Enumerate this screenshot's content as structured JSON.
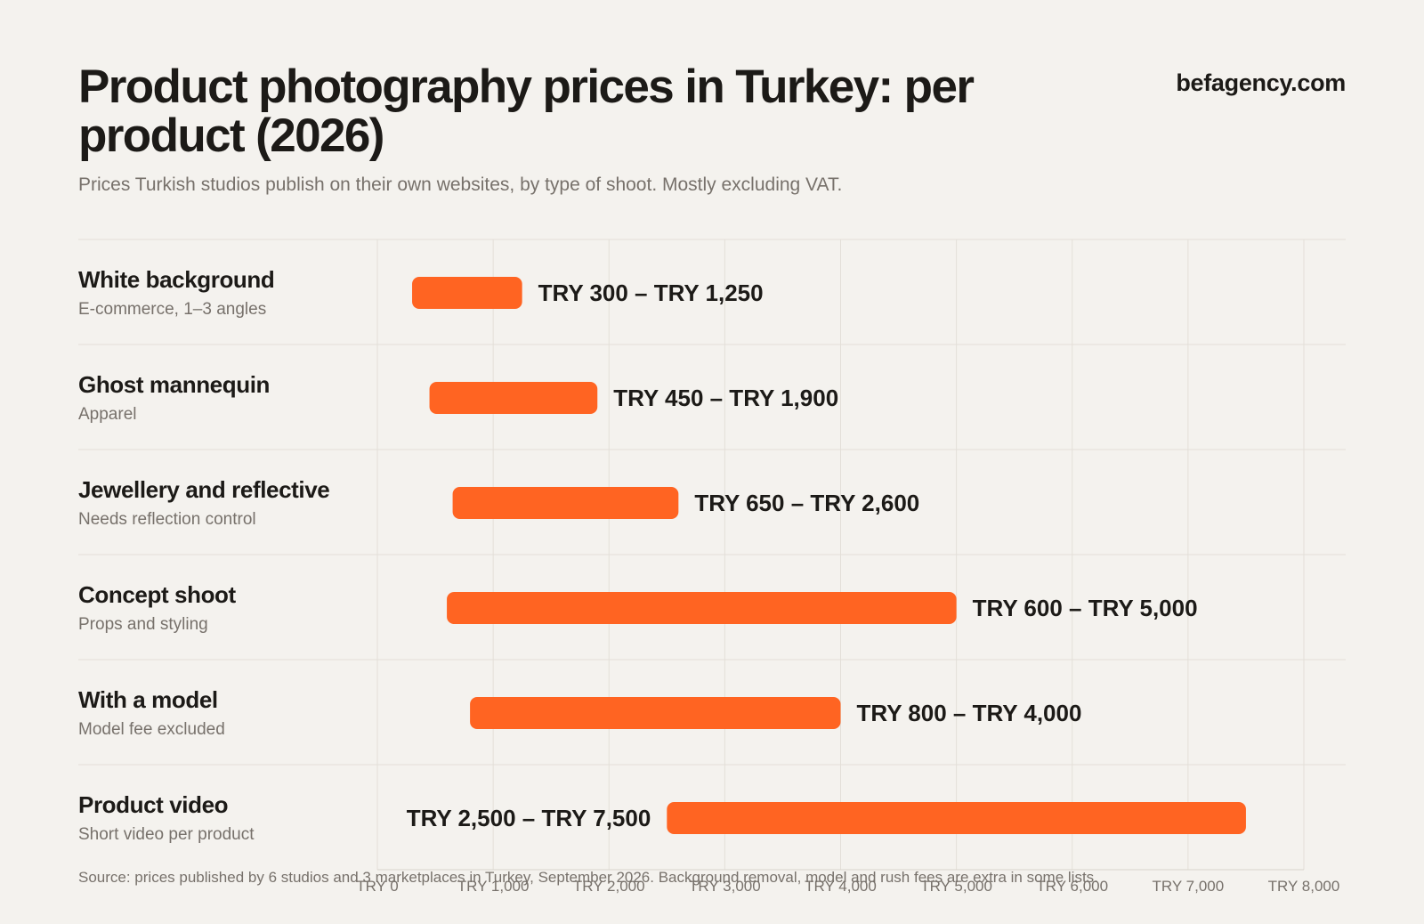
{
  "header": {
    "title": "Product photography prices in Turkey: per product (2026)",
    "brand": "befagency.com",
    "subtitle": "Prices Turkish studios publish on their own websites, by type of shoot. Mostly excluding VAT."
  },
  "footer": {
    "source": "Source: prices published by 6 studios and 3 marketplaces in Turkey, September 2026. Background removal, model and rush fees are extra in some lists."
  },
  "colors": {
    "bar": "#ff6422",
    "text": "#1c1a17",
    "muted": "#77716b",
    "grid": "#e3dfd8",
    "background": "#f4f2ee"
  },
  "chart_data": {
    "type": "bar",
    "orientation": "horizontal-range",
    "xlim": [
      0,
      8000
    ],
    "x_ticks": [
      0,
      1000,
      2000,
      3000,
      4000,
      5000,
      6000,
      7000,
      8000
    ],
    "tick_labels": [
      "TRY 0",
      "TRY 1,000",
      "TRY 2,000",
      "TRY 3,000",
      "TRY 4,000",
      "TRY 5,000",
      "TRY 6,000",
      "TRY 7,000",
      "TRY 8,000"
    ],
    "grid": true,
    "categories": [
      {
        "name": "White background",
        "note": "E-commerce, 1–3 angles",
        "low": 300,
        "high": 1250,
        "label": "TRY 300 – TRY 1,250",
        "label_side": "right"
      },
      {
        "name": "Ghost mannequin",
        "note": "Apparel",
        "low": 450,
        "high": 1900,
        "label": "TRY 450 – TRY 1,900",
        "label_side": "right"
      },
      {
        "name": "Jewellery and reflective",
        "note": "Needs reflection control",
        "low": 650,
        "high": 2600,
        "label": "TRY 650 – TRY 2,600",
        "label_side": "right"
      },
      {
        "name": "Concept shoot",
        "note": "Props and styling",
        "low": 600,
        "high": 5000,
        "label": "TRY 600 – TRY 5,000",
        "label_side": "right"
      },
      {
        "name": "With a model",
        "note": "Model fee excluded",
        "low": 800,
        "high": 4000,
        "label": "TRY 800 – TRY 4,000",
        "label_side": "right"
      },
      {
        "name": "Product video",
        "note": "Short video per product",
        "low": 2500,
        "high": 7500,
        "label": "TRY 2,500 – TRY 7,500",
        "label_side": "left"
      }
    ]
  }
}
